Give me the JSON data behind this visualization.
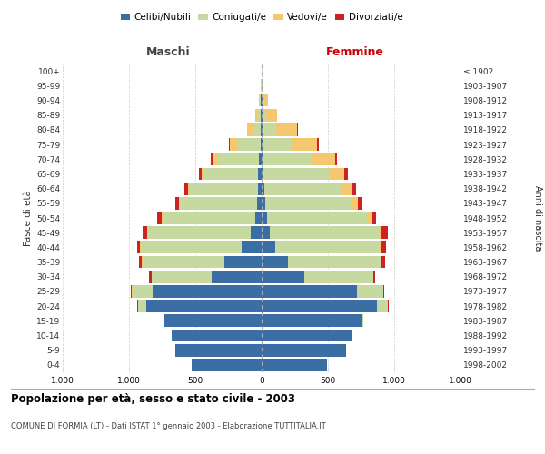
{
  "age_groups": [
    "0-4",
    "5-9",
    "10-14",
    "15-19",
    "20-24",
    "25-29",
    "30-34",
    "35-39",
    "40-44",
    "45-49",
    "50-54",
    "55-59",
    "60-64",
    "65-69",
    "70-74",
    "75-79",
    "80-84",
    "85-89",
    "90-94",
    "95-99",
    "100+"
  ],
  "birth_years": [
    "1998-2002",
    "1993-1997",
    "1988-1992",
    "1983-1987",
    "1978-1982",
    "1973-1977",
    "1968-1972",
    "1963-1967",
    "1958-1962",
    "1953-1957",
    "1948-1952",
    "1943-1947",
    "1938-1942",
    "1933-1937",
    "1928-1932",
    "1923-1927",
    "1918-1922",
    "1913-1917",
    "1908-1912",
    "1903-1907",
    "≤ 1902"
  ],
  "maschi_celibi": [
    530,
    650,
    680,
    730,
    870,
    820,
    380,
    280,
    150,
    80,
    50,
    35,
    30,
    25,
    20,
    10,
    10,
    5,
    5,
    2,
    0
  ],
  "maschi_coniugati": [
    0,
    0,
    0,
    5,
    60,
    155,
    450,
    620,
    760,
    780,
    700,
    580,
    510,
    410,
    310,
    170,
    60,
    20,
    10,
    3,
    0
  ],
  "maschi_vedovi": [
    0,
    0,
    0,
    0,
    1,
    2,
    2,
    3,
    5,
    5,
    5,
    10,
    15,
    20,
    40,
    60,
    40,
    20,
    5,
    1,
    0
  ],
  "maschi_divorziati": [
    0,
    0,
    0,
    0,
    5,
    10,
    15,
    20,
    25,
    30,
    30,
    25,
    25,
    15,
    15,
    5,
    0,
    0,
    0,
    0,
    0
  ],
  "femmine_nubili": [
    490,
    640,
    680,
    760,
    870,
    720,
    320,
    200,
    100,
    65,
    40,
    25,
    20,
    15,
    15,
    10,
    10,
    5,
    5,
    2,
    0
  ],
  "femmine_coniugate": [
    0,
    0,
    0,
    10,
    80,
    195,
    520,
    700,
    790,
    820,
    760,
    650,
    580,
    490,
    370,
    210,
    90,
    30,
    15,
    3,
    0
  ],
  "femmine_vedove": [
    0,
    0,
    0,
    0,
    2,
    2,
    3,
    5,
    10,
    20,
    30,
    50,
    80,
    120,
    170,
    200,
    170,
    80,
    25,
    5,
    2
  ],
  "femmine_divorziate": [
    0,
    0,
    0,
    0,
    5,
    10,
    15,
    25,
    35,
    50,
    35,
    30,
    30,
    25,
    15,
    10,
    5,
    0,
    0,
    0,
    0
  ],
  "color_celibi": "#3a6ea5",
  "color_coniugati": "#c5d9a0",
  "color_vedovi": "#f5c76e",
  "color_divorziati": "#cc2222",
  "xlim": 1500,
  "xticks": [
    -1500,
    -1000,
    -500,
    0,
    500,
    1000,
    1500
  ],
  "title": "Popolazione per età, sesso e stato civile - 2003",
  "subtitle": "COMUNE DI FORMIA (LT) - Dati ISTAT 1° gennaio 2003 - Elaborazione TUTTITALIA.IT",
  "legend_labels": [
    "Celibi/Nubili",
    "Coniugati/e",
    "Vedovi/e",
    "Divorziati/e"
  ],
  "label_maschi": "Maschi",
  "label_femmine": "Femmine",
  "label_fasce": "Fasce di età",
  "label_anni": "Anni di nascita",
  "bg_color": "#ffffff",
  "grid_color": "#cccccc"
}
